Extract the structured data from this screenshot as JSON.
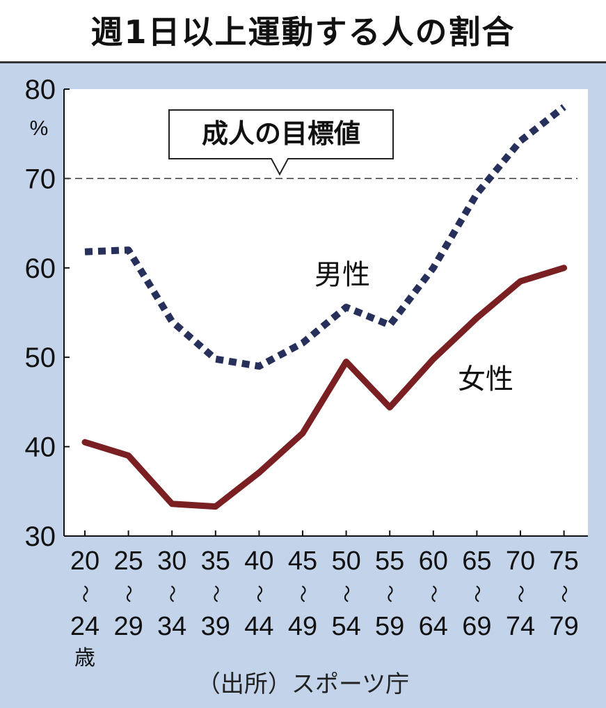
{
  "title": "週1日以上運動する人の割合",
  "source": "（出所）スポーツ庁",
  "colors": {
    "background": "#c3d3ea",
    "plot_background": "#ffffff",
    "male": "#27305a",
    "female": "#7a1f22"
  },
  "chart_data": {
    "type": "line",
    "x_from": [
      "20",
      "25",
      "30",
      "35",
      "40",
      "45",
      "50",
      "55",
      "60",
      "65",
      "70",
      "75"
    ],
    "x_to": [
      "24",
      "29",
      "34",
      "39",
      "44",
      "49",
      "54",
      "59",
      "64",
      "69",
      "74",
      "79"
    ],
    "x_separator": "〜",
    "x_unit": "歳",
    "y_unit": "%",
    "ylim": [
      30,
      80
    ],
    "yticks": [
      30,
      40,
      50,
      60,
      70,
      80
    ],
    "grid": false,
    "series": [
      {
        "name": "男性",
        "style": "dotted",
        "values": [
          61.8,
          62,
          54,
          49.8,
          49,
          51.6,
          55.6,
          53.6,
          60,
          68.3,
          74.2,
          78
        ]
      },
      {
        "name": "女性",
        "style": "solid",
        "values": [
          40.5,
          39,
          33.6,
          33.3,
          37.1,
          41.5,
          49.5,
          44.4,
          49.8,
          54.4,
          58.5,
          60
        ]
      }
    ],
    "annotation": {
      "label": "成人の目標値",
      "value": 70,
      "line": "dashed"
    }
  }
}
